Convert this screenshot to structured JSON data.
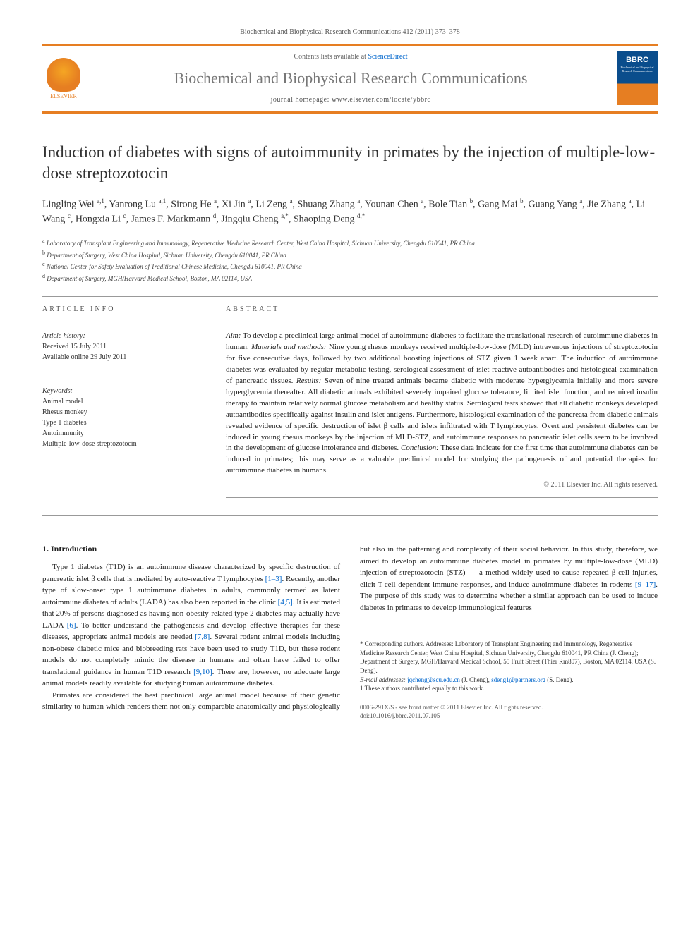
{
  "citation": "Biochemical and Biophysical Research Communications 412 (2011) 373–378",
  "contents_prefix": "Contents lists available at ",
  "contents_link": "ScienceDirect",
  "journal_name": "Biochemical and Biophysical Research Communications",
  "homepage_prefix": "journal homepage: ",
  "homepage_url": "www.elsevier.com/locate/ybbrc",
  "cover_abbrev": "BBRC",
  "cover_subtitle": "Biochemical and Biophysical Research Communications",
  "elsevier_label": "ELSEVIER",
  "title": "Induction of diabetes with signs of autoimmunity in primates by the injection of multiple-low-dose streptozotocin",
  "authors_html": "Lingling Wei <sup>a,1</sup>, Yanrong Lu <sup>a,1</sup>, Sirong He <sup>a</sup>, Xi Jin <sup>a</sup>, Li Zeng <sup>a</sup>, Shuang Zhang <sup>a</sup>, Younan Chen <sup>a</sup>, Bole Tian <sup>b</sup>, Gang Mai <sup>b</sup>, Guang Yang <sup>a</sup>, Jie Zhang <sup>a</sup>, Li Wang <sup>c</sup>, Hongxia Li <sup>c</sup>, James F. Markmann <sup>d</sup>, Jingqiu Cheng <sup>a,*</sup>, Shaoping Deng <sup>d,*</sup>",
  "affiliations": [
    "a|Laboratory of Transplant Engineering and Immunology, Regenerative Medicine Research Center, West China Hospital, Sichuan University, Chengdu 610041, PR China",
    "b|Department of Surgery, West China Hospital, Sichuan University, Chengdu 610041, PR China",
    "c|National Center for Safety Evaluation of Traditional Chinese Medicine, Chengdu 610041, PR China",
    "d|Department of Surgery, MGH/Harvard Medical School, Boston, MA 02114, USA"
  ],
  "article_info_header": "ARTICLE INFO",
  "abstract_header": "ABSTRACT",
  "history_label": "Article history:",
  "history_received": "Received 15 July 2011",
  "history_online": "Available online 29 July 2011",
  "keywords_label": "Keywords:",
  "keywords": [
    "Animal model",
    "Rhesus monkey",
    "Type 1 diabetes",
    "Autoimmunity",
    "Multiple-low-dose streptozotocin"
  ],
  "abstract": "Aim: To develop a preclinical large animal model of autoimmune diabetes to facilitate the translational research of autoimmune diabetes in human. Materials and methods: Nine young rhesus monkeys received multiple-low-dose (MLD) intravenous injections of streptozotocin for five consecutive days, followed by two additional boosting injections of STZ given 1 week apart. The induction of autoimmune diabetes was evaluated by regular metabolic testing, serological assessment of islet-reactive autoantibodies and histological examination of pancreatic tissues. Results: Seven of nine treated animals became diabetic with moderate hyperglycemia initially and more severe hyperglycemia thereafter. All diabetic animals exhibited severely impaired glucose tolerance, limited islet function, and required insulin therapy to maintain relatively normal glucose metabolism and healthy status. Serological tests showed that all diabetic monkeys developed autoantibodies specifically against insulin and islet antigens. Furthermore, histological examination of the pancreata from diabetic animals revealed evidence of specific destruction of islet β cells and islets infiltrated with T lymphocytes. Overt and persistent diabetes can be induced in young rhesus monkeys by the injection of MLD-STZ, and autoimmune responses to pancreatic islet cells seem to be involved in the development of glucose intolerance and diabetes. Conclusion: These data indicate for the first time that autoimmune diabetes can be induced in primates; this may serve as a valuable preclinical model for studying the pathogenesis of and potential therapies for autoimmune diabetes in humans.",
  "copyright_line": "© 2011 Elsevier Inc. All rights reserved.",
  "intro_header": "1. Introduction",
  "intro_p1_pre": "Type 1 diabetes (T1D) is an autoimmune disease characterized by specific destruction of pancreatic islet β cells that is mediated by auto-reactive T lymphocytes ",
  "intro_p1_ref1": "[1–3]",
  "intro_p1_mid1": ". Recently, another type of slow-onset type 1 autoimmune diabetes in adults, commonly termed as latent autoimmune diabetes of adults (LADA) has also been reported in the clinic ",
  "intro_p1_ref2": "[4,5]",
  "intro_p1_mid2": ". It is estimated that 20% of persons diagnosed as having non-obesity-related type 2 diabetes may actually have LADA ",
  "intro_p1_ref3": "[6]",
  "intro_p1_post": ". To better understand the pathogenesis and develop effective therapies for these diseases, appropriate ",
  "intro_p2_pre": "animal models are needed ",
  "intro_p2_ref1": "[7,8]",
  "intro_p2_mid1": ". Several rodent animal models including non-obese diabetic mice and biobreeding rats have been used to study T1D, but these rodent models do not completely mimic the disease in humans and often have failed to offer translational guidance in human T1D research ",
  "intro_p2_ref2": "[9,10]",
  "intro_p2_post": ". There are, however, no adequate large animal models readily available for studying human autoimmune diabetes.",
  "intro_p3_pre": "Primates are considered the best preclinical large animal model because of their genetic similarity to human which renders them not only comparable anatomically and physiologically but also in the patterning and complexity of their social behavior. In this study, therefore, we aimed to develop an autoimmune diabetes model in primates by multiple-low-dose (MLD) injection of streptozotocin (STZ) — a method widely used to cause repeated β-cell injuries, elicit T-cell-dependent immune responses, and induce autoimmune diabetes in rodents ",
  "intro_p3_ref1": "[9–17]",
  "intro_p3_post": ". The purpose of this study was to determine whether a similar approach can be used to induce diabetes in primates to develop immunological features",
  "footnote_corr": "* Corresponding authors. Addresses: Laboratory of Transplant Engineering and Immunology, Regenerative Medicine Research Center, West China Hospital, Sichuan University, Chengdu 610041, PR China (J. Cheng); Department of Surgery, MGH/Harvard Medical School, 55 Fruit Street (Thier Rm807), Boston, MA 02114, USA (S. Deng).",
  "footnote_email_label": "E-mail addresses: ",
  "footnote_email1": "jqcheng@scu.edu.cn",
  "footnote_email1_who": " (J. Cheng), ",
  "footnote_email2": "sdeng1@partners.org",
  "footnote_email2_who": " (S. Deng).",
  "footnote_equal": "1  These authors contributed equally to this work.",
  "footer_issn": "0006-291X/$ - see front matter © 2011 Elsevier Inc. All rights reserved.",
  "footer_doi": "doi:10.1016/j.bbrc.2011.07.105"
}
